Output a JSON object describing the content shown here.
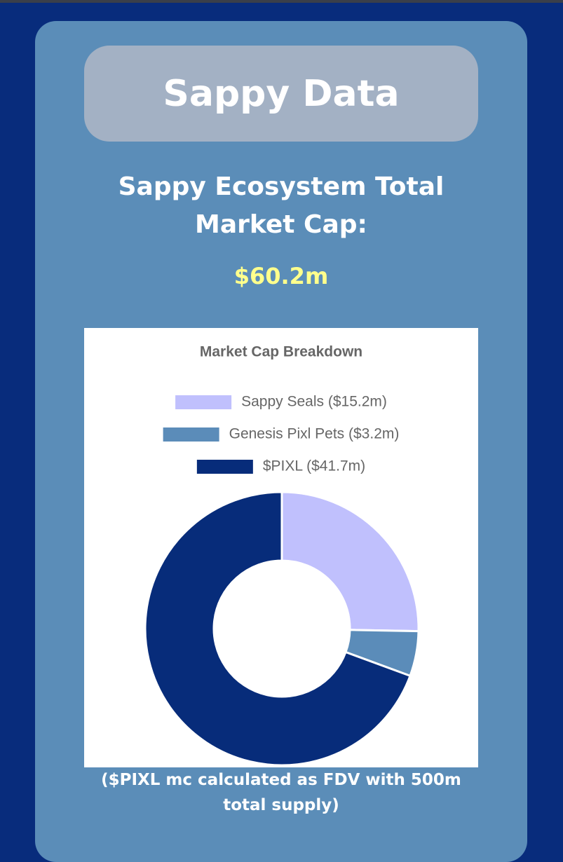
{
  "header": {
    "title": "Sappy Data"
  },
  "summary": {
    "heading": "Sappy Ecosystem Total Market Cap:",
    "total": "$60.2m"
  },
  "chart_data": {
    "type": "donut",
    "title": "Market Cap Breakdown",
    "categories": [
      "Sappy Seals ($15.2m)",
      "Genesis Pixl Pets ($3.2m)",
      "$PIXL ($41.7m)"
    ],
    "values": [
      15.2,
      3.2,
      41.7
    ],
    "colors": [
      "#c0c0fd",
      "#5b8cb9",
      "#072c7a"
    ]
  },
  "footnote": "($PIXL mc calculated as FDV with 500m total supply)"
}
